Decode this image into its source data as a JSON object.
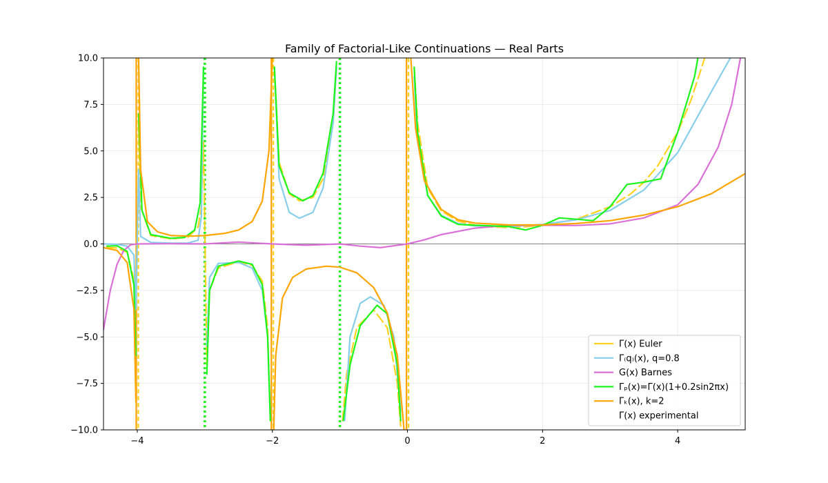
{
  "chart_data": {
    "type": "line",
    "title": "Family of Factorial-Like Continuations — Real Parts",
    "xlabel": "",
    "ylabel": "",
    "xlim": [
      -4.5,
      5.0
    ],
    "ylim": [
      -10.0,
      10.0
    ],
    "xticks": [
      -4,
      -2,
      0,
      2,
      4
    ],
    "xtick_labels": [
      "−4",
      "−2",
      "0",
      "2",
      "4"
    ],
    "yticks": [
      -10,
      -7.5,
      -5,
      -2.5,
      0,
      2.5,
      5,
      7.5,
      10
    ],
    "ytick_labels": [
      "−10.0",
      "−7.5",
      "−5.0",
      "−2.5",
      "0.0",
      "2.5",
      "5.0",
      "7.5",
      "10.0"
    ],
    "grid": true,
    "legend_position": "lower right",
    "series": [
      {
        "name": "Γ(x) Euler",
        "color": "#FFD21F",
        "style": "dashed",
        "points": [
          [
            -4.45,
            -0.19
          ],
          [
            -4.3,
            -0.22
          ],
          [
            -4.15,
            -0.45
          ],
          [
            -4.05,
            -1.9
          ],
          [
            -4.02,
            -6.0
          ],
          [
            -3.98,
            6.5
          ],
          [
            -3.95,
            2.0
          ],
          [
            -3.8,
            0.45
          ],
          [
            -3.5,
            0.27
          ],
          [
            -3.25,
            0.36
          ],
          [
            -3.1,
            0.9
          ],
          [
            -3.05,
            2.0
          ],
          [
            -3.02,
            5.5
          ],
          [
            -2.97,
            -6.5
          ],
          [
            -2.93,
            -2.5
          ],
          [
            -2.8,
            -1.3
          ],
          [
            -2.5,
            -0.95
          ],
          [
            -2.3,
            -1.15
          ],
          [
            -2.15,
            -2.0
          ],
          [
            -2.07,
            -4.5
          ],
          [
            -2.03,
            -9.5
          ],
          [
            -1.97,
            9.5
          ],
          [
            -1.9,
            4.4
          ],
          [
            -1.75,
            2.7
          ],
          [
            -1.6,
            2.32
          ],
          [
            -1.4,
            2.5
          ],
          [
            -1.25,
            3.5
          ],
          [
            -1.1,
            6.5
          ],
          [
            -1.05,
            9.5
          ],
          [
            -0.96,
            -9.5
          ],
          [
            -0.9,
            -7.0
          ],
          [
            -0.75,
            -4.5
          ],
          [
            -0.5,
            -3.55
          ],
          [
            -0.3,
            -4.5
          ],
          [
            -0.15,
            -7.5
          ],
          [
            -0.1,
            -9.8
          ],
          [
            0.1,
            9.5
          ],
          [
            0.15,
            6.5
          ],
          [
            0.3,
            3.0
          ],
          [
            0.5,
            1.77
          ],
          [
            0.75,
            1.23
          ],
          [
            1.0,
            1.0
          ],
          [
            1.25,
            0.91
          ],
          [
            1.46,
            0.886
          ],
          [
            1.75,
            0.92
          ],
          [
            2.0,
            1.0
          ],
          [
            2.5,
            1.33
          ],
          [
            3.0,
            2.0
          ],
          [
            3.3,
            2.68
          ],
          [
            3.5,
            3.32
          ],
          [
            3.7,
            4.17
          ],
          [
            4.0,
            6.0
          ],
          [
            4.2,
            7.76
          ],
          [
            4.4,
            10.0
          ]
        ]
      },
      {
        "name": "Γ₍q₎(x), q=0.8",
        "color": "#87CEEB",
        "style": "solid",
        "points": [
          [
            -4.5,
            0.0
          ],
          [
            -4.3,
            -0.02
          ],
          [
            -4.15,
            -0.12
          ],
          [
            -4.05,
            -0.6
          ],
          [
            -4.02,
            -3.5
          ],
          [
            -3.98,
            4.0
          ],
          [
            -3.95,
            0.4
          ],
          [
            -3.8,
            0.08
          ],
          [
            -3.5,
            0.04
          ],
          [
            -3.25,
            0.05
          ],
          [
            -3.1,
            0.2
          ],
          [
            -3.05,
            1.5
          ],
          [
            -3.02,
            9.5
          ],
          [
            -2.97,
            -5.5
          ],
          [
            -2.93,
            -1.8
          ],
          [
            -2.8,
            -1.05
          ],
          [
            -2.5,
            -1.0
          ],
          [
            -2.3,
            -1.3
          ],
          [
            -2.15,
            -2.5
          ],
          [
            -2.07,
            -5.0
          ],
          [
            -2.03,
            -9.5
          ],
          [
            -1.97,
            9.5
          ],
          [
            -1.9,
            3.5
          ],
          [
            -1.75,
            1.7
          ],
          [
            -1.6,
            1.38
          ],
          [
            -1.4,
            1.7
          ],
          [
            -1.25,
            3.0
          ],
          [
            -1.1,
            6.5
          ],
          [
            -1.05,
            9.5
          ],
          [
            -0.93,
            -9.5
          ],
          [
            -0.85,
            -5.0
          ],
          [
            -0.7,
            -3.2
          ],
          [
            -0.55,
            -2.85
          ],
          [
            -0.35,
            -3.3
          ],
          [
            -0.2,
            -5.0
          ],
          [
            -0.1,
            -9.0
          ],
          [
            0.1,
            9.0
          ],
          [
            0.15,
            5.5
          ],
          [
            0.3,
            2.6
          ],
          [
            0.5,
            1.55
          ],
          [
            0.75,
            1.1
          ],
          [
            1.0,
            0.97
          ],
          [
            1.5,
            0.93
          ],
          [
            2.0,
            1.05
          ],
          [
            2.5,
            1.3
          ],
          [
            3.0,
            1.8
          ],
          [
            3.5,
            2.9
          ],
          [
            4.0,
            4.9
          ],
          [
            4.5,
            8.2
          ],
          [
            4.78,
            10.0
          ]
        ]
      },
      {
        "name": "G(x) Barnes",
        "color": "#DA70D6",
        "style": "solid",
        "points": [
          [
            -4.5,
            -4.6
          ],
          [
            -4.4,
            -2.5
          ],
          [
            -4.3,
            -1.1
          ],
          [
            -4.2,
            -0.35
          ],
          [
            -4.1,
            -0.05
          ],
          [
            -4.0,
            0.0
          ],
          [
            -3.5,
            0.01
          ],
          [
            -3.0,
            0.0
          ],
          [
            -2.5,
            0.1
          ],
          [
            -2.0,
            0.0
          ],
          [
            -1.5,
            -0.07
          ],
          [
            -1.0,
            0.0
          ],
          [
            -0.7,
            -0.12
          ],
          [
            -0.4,
            -0.2
          ],
          [
            -0.2,
            -0.1
          ],
          [
            0.0,
            0.0
          ],
          [
            0.25,
            0.22
          ],
          [
            0.5,
            0.5
          ],
          [
            1.0,
            0.85
          ],
          [
            1.5,
            1.0
          ],
          [
            2.0,
            1.0
          ],
          [
            2.5,
            0.99
          ],
          [
            3.0,
            1.08
          ],
          [
            3.5,
            1.4
          ],
          [
            4.0,
            2.1
          ],
          [
            4.3,
            3.2
          ],
          [
            4.6,
            5.2
          ],
          [
            4.8,
            7.5
          ],
          [
            4.93,
            10.0
          ]
        ]
      },
      {
        "name": "Γₚ(x)=Γ(x)(1+0.2sin2πx)",
        "color": "#1CF51C",
        "style": "solid+dotted",
        "points": [
          [
            -4.45,
            -0.12
          ],
          [
            -4.3,
            -0.1
          ],
          [
            -4.15,
            -0.4
          ],
          [
            -4.05,
            -2.2
          ],
          [
            -4.02,
            -6.0
          ],
          [
            -3.98,
            7.0
          ],
          [
            -3.93,
            1.8
          ],
          [
            -3.8,
            0.5
          ],
          [
            -3.5,
            0.3
          ],
          [
            -3.3,
            0.35
          ],
          [
            -3.15,
            0.75
          ],
          [
            -3.07,
            2.2
          ],
          [
            -3.02,
            9.5
          ],
          [
            -2.97,
            -7.0
          ],
          [
            -2.93,
            -2.5
          ],
          [
            -2.8,
            -1.2
          ],
          [
            -2.5,
            -0.92
          ],
          [
            -2.3,
            -1.1
          ],
          [
            -2.15,
            -2.2
          ],
          [
            -2.07,
            -5.0
          ],
          [
            -2.03,
            -9.5
          ],
          [
            -1.97,
            9.5
          ],
          [
            -1.9,
            4.2
          ],
          [
            -1.75,
            2.75
          ],
          [
            -1.55,
            2.32
          ],
          [
            -1.4,
            2.6
          ],
          [
            -1.25,
            3.8
          ],
          [
            -1.1,
            7.0
          ],
          [
            -1.05,
            9.8
          ],
          [
            -0.95,
            -9.5
          ],
          [
            -0.85,
            -6.5
          ],
          [
            -0.7,
            -4.4
          ],
          [
            -0.45,
            -3.3
          ],
          [
            -0.3,
            -3.75
          ],
          [
            -0.15,
            -6.5
          ],
          [
            -0.1,
            -9.5
          ],
          [
            0.1,
            9.5
          ],
          [
            0.15,
            6.0
          ],
          [
            0.3,
            2.6
          ],
          [
            0.5,
            1.5
          ],
          [
            0.75,
            1.05
          ],
          [
            1.0,
            1.0
          ],
          [
            1.25,
            0.97
          ],
          [
            1.5,
            0.93
          ],
          [
            1.75,
            0.75
          ],
          [
            2.0,
            1.0
          ],
          [
            2.25,
            1.4
          ],
          [
            2.5,
            1.33
          ],
          [
            2.75,
            1.25
          ],
          [
            3.0,
            2.0
          ],
          [
            3.25,
            3.2
          ],
          [
            3.5,
            3.32
          ],
          [
            3.75,
            3.5
          ],
          [
            4.0,
            6.0
          ],
          [
            4.25,
            9.0
          ],
          [
            4.3,
            10.0
          ]
        ]
      },
      {
        "name": "Γₖ(x), k=2",
        "color": "#FFA500",
        "style": "solid",
        "points": [
          [
            -4.5,
            -0.2
          ],
          [
            -4.3,
            -0.35
          ],
          [
            -4.15,
            -1.0
          ],
          [
            -4.05,
            -3.5
          ],
          [
            -4.02,
            -8.5
          ],
          [
            -3.98,
            10.0
          ],
          [
            -3.95,
            4.0
          ],
          [
            -3.85,
            1.2
          ],
          [
            -3.7,
            0.65
          ],
          [
            -3.5,
            0.45
          ],
          [
            -3.2,
            0.42
          ],
          [
            -3.0,
            0.45
          ],
          [
            -2.7,
            0.57
          ],
          [
            -2.5,
            0.75
          ],
          [
            -2.3,
            1.2
          ],
          [
            -2.15,
            2.3
          ],
          [
            -2.05,
            5.0
          ],
          [
            -2.0,
            10.0
          ],
          [
            -1.98,
            -10.0
          ],
          [
            -1.95,
            -6.0
          ],
          [
            -1.85,
            -2.9
          ],
          [
            -1.7,
            -1.8
          ],
          [
            -1.5,
            -1.35
          ],
          [
            -1.2,
            -1.2
          ],
          [
            -1.0,
            -1.25
          ],
          [
            -0.75,
            -1.55
          ],
          [
            -0.5,
            -2.35
          ],
          [
            -0.3,
            -3.7
          ],
          [
            -0.15,
            -6.0
          ],
          [
            -0.05,
            -10.0
          ],
          [
            0.05,
            10.0
          ],
          [
            0.12,
            6.2
          ],
          [
            0.25,
            3.4
          ],
          [
            0.5,
            1.85
          ],
          [
            0.75,
            1.3
          ],
          [
            1.0,
            1.12
          ],
          [
            1.5,
            1.02
          ],
          [
            2.0,
            1.02
          ],
          [
            2.5,
            1.1
          ],
          [
            3.0,
            1.25
          ],
          [
            3.5,
            1.55
          ],
          [
            4.0,
            2.0
          ],
          [
            4.5,
            2.7
          ],
          [
            5.0,
            3.78
          ]
        ]
      },
      {
        "name": "Γ(x) experimental",
        "color": "#FFFFFF",
        "style": "none",
        "points": []
      }
    ],
    "vertical_asymptotes": [
      {
        "x": -4,
        "colors": [
          "#FFA500",
          "#FFD21F"
        ]
      },
      {
        "x": -3,
        "colors": [
          "#1CF51C"
        ]
      },
      {
        "x": -2,
        "colors": [
          "#FFA500",
          "#FFD21F"
        ]
      },
      {
        "x": -1,
        "colors": [
          "#1CF51C"
        ]
      },
      {
        "x": 0,
        "colors": [
          "#FFA500",
          "#FFD21F"
        ]
      }
    ]
  }
}
